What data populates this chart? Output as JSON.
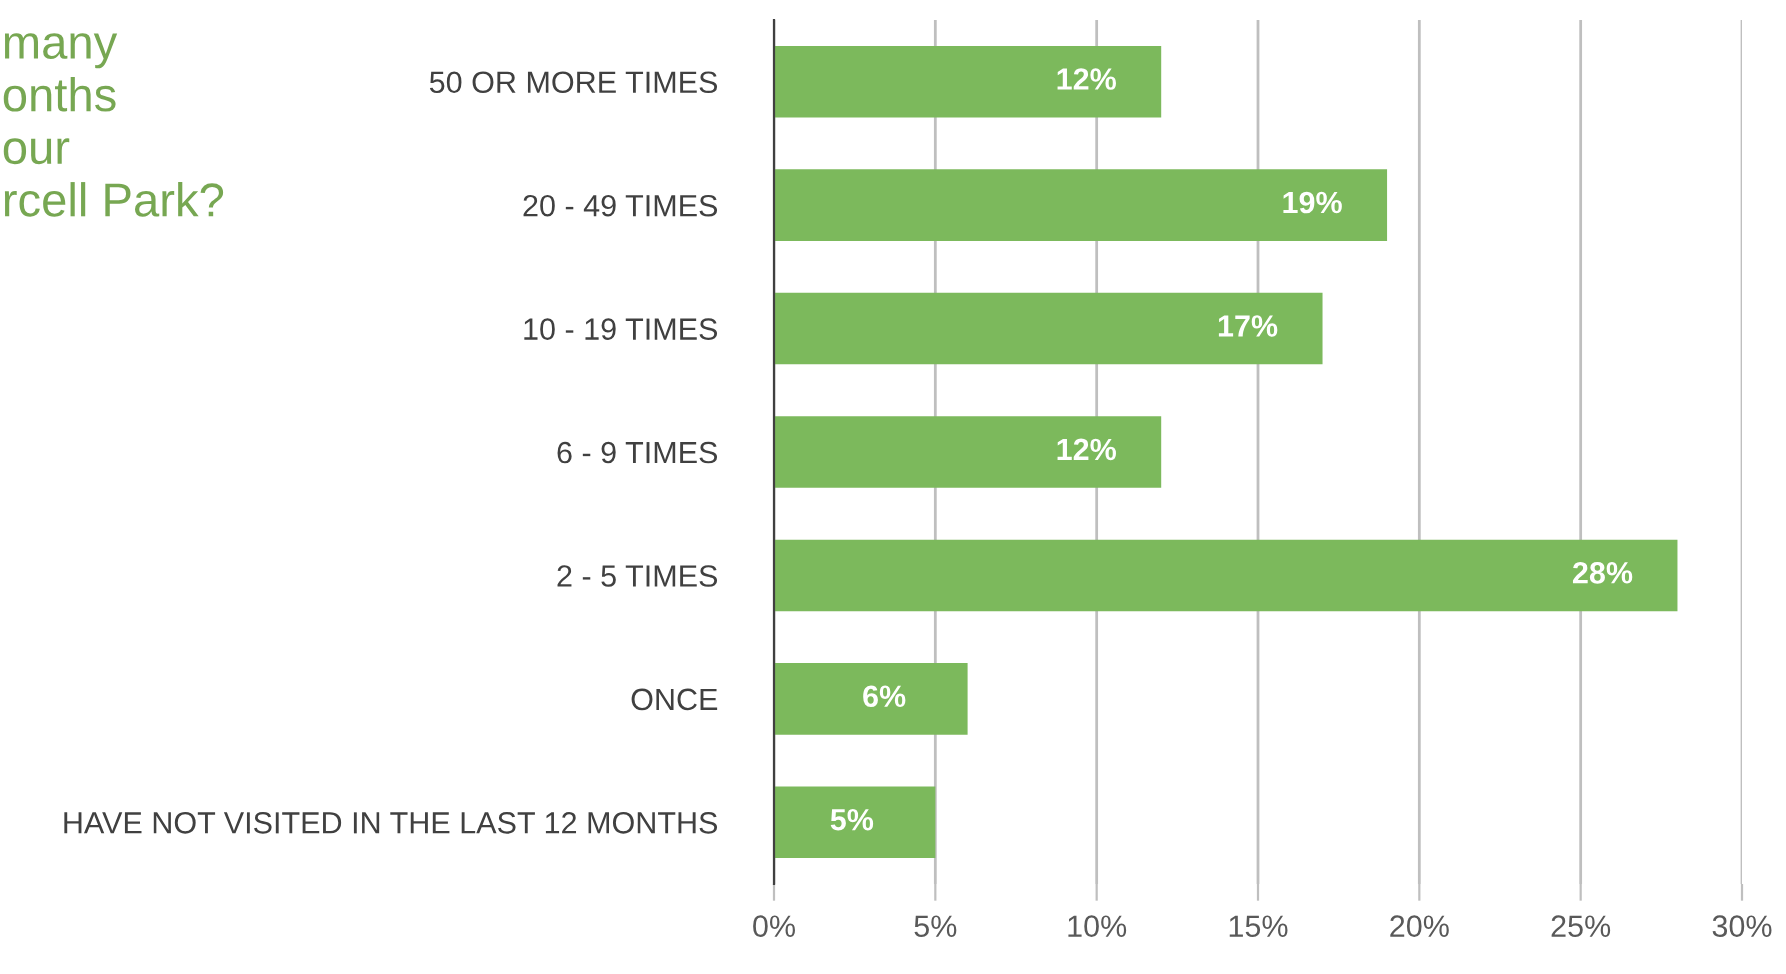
{
  "chart_data": {
    "type": "bar",
    "orientation": "horizontal",
    "title": "many\nonths\nour\nrcell Park?",
    "categories": [
      "50 OR MORE TIMES",
      "20 - 49 TIMES",
      "10 - 19 TIMES",
      "6 - 9 TIMES",
      "2 - 5 TIMES",
      "ONCE",
      "HAVE NOT VISITED IN THE LAST 12 MONTHS"
    ],
    "values": [
      12,
      19,
      17,
      12,
      28,
      6,
      5
    ],
    "value_labels": [
      "12%",
      "19%",
      "17%",
      "12%",
      "28%",
      "6%",
      "5%"
    ],
    "color": "#7cb95c",
    "xlim": [
      0,
      30
    ],
    "xticks": [
      {
        "value": 0,
        "label": "0%"
      },
      {
        "value": 5,
        "label": "5%"
      },
      {
        "value": 10,
        "label": "10%"
      },
      {
        "value": 15,
        "label": "15%"
      },
      {
        "value": 20,
        "label": "20%"
      },
      {
        "value": 25,
        "label": "25%"
      },
      {
        "value": 30,
        "label": "30%"
      }
    ],
    "grid": "x",
    "legend": false
  }
}
